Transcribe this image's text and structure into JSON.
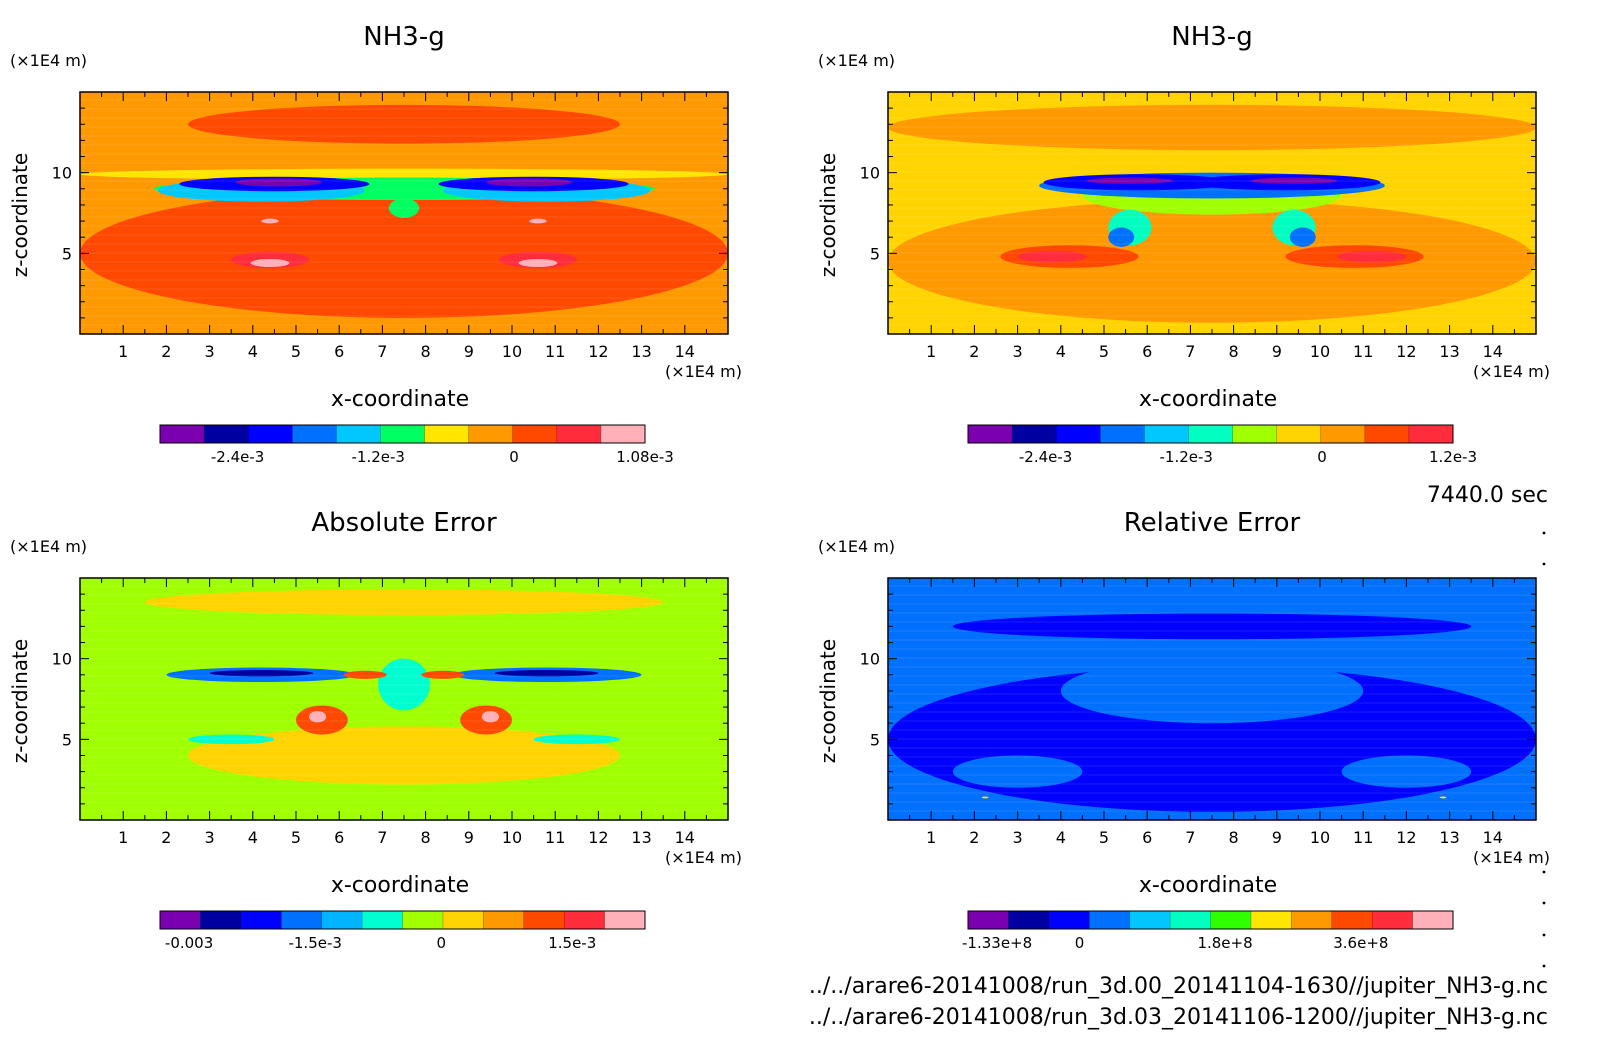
{
  "time_label": "7440.0 sec",
  "files": [
    "../../arare6-20141008/run_3d.00_20141104-1630//jupiter_NH3-g.nc",
    "../../arare6-20141008/run_3d.03_20141106-1200//jupiter_NH3-g.nc"
  ],
  "chart_data": [
    {
      "type": "heatmap",
      "title": "NH3-g",
      "xlabel": "x-coordinate",
      "ylabel": "z-coordinate",
      "x_unit": "(×1E4 m)",
      "y_unit": "(×1E4 m)",
      "xlim": [
        0,
        15
      ],
      "ylim": [
        0,
        15
      ],
      "x_ticks": [
        1,
        2,
        3,
        4,
        5,
        6,
        7,
        8,
        9,
        10,
        11,
        12,
        13,
        14
      ],
      "y_ticks": [
        5,
        10
      ],
      "colorbar": {
        "colors": [
          "#7a00b0",
          "#0000a0",
          "#0000ff",
          "#0070ff",
          "#00c8ff",
          "#00ff60",
          "#ffe600",
          "#ff9900",
          "#ff4800",
          "#ff2c3c",
          "#ffb0b8"
        ],
        "labels": [
          "-2.4e-3",
          "-1.2e-3",
          "0",
          "1.08e-3"
        ]
      },
      "field": {
        "background": "#ff9900",
        "regions": [
          {
            "color": "#ff4800",
            "x": [
              0,
              15
            ],
            "y": [
              11.8,
              14.2
            ],
            "cx": 7.5,
            "cy": 13,
            "rx": 5,
            "ry": 1.2
          },
          {
            "color": "#ff4800",
            "cx": 7.5,
            "cy": 5,
            "rx": 7.5,
            "ry": 4
          },
          {
            "color": "#ffe600",
            "cx": 7.5,
            "cy": 9.9,
            "rx": 7.5,
            "ry": 0.35
          },
          {
            "color": "#00ff60",
            "cx": 7.5,
            "cy": 9,
            "rx": 5.8,
            "ry": 0.7
          },
          {
            "color": "#00c8ff",
            "cx": 4.2,
            "cy": 8.9,
            "rx": 2.4,
            "ry": 0.7
          },
          {
            "color": "#00c8ff",
            "cx": 10.8,
            "cy": 8.9,
            "rx": 2.4,
            "ry": 0.7
          },
          {
            "color": "#0000ff",
            "cx": 4.5,
            "cy": 9.3,
            "rx": 2.2,
            "ry": 0.45
          },
          {
            "color": "#0000ff",
            "cx": 10.5,
            "cy": 9.3,
            "rx": 2.2,
            "ry": 0.45
          },
          {
            "color": "#7a00b0",
            "cx": 4.6,
            "cy": 9.4,
            "rx": 1.0,
            "ry": 0.25
          },
          {
            "color": "#7a00b0",
            "cx": 10.4,
            "cy": 9.4,
            "rx": 1.0,
            "ry": 0.25
          },
          {
            "color": "#00ff60",
            "cx": 7.5,
            "cy": 7.8,
            "rx": 0.35,
            "ry": 0.6
          },
          {
            "color": "#ff2c3c",
            "cx": 4.4,
            "cy": 4.6,
            "rx": 0.9,
            "ry": 0.5
          },
          {
            "color": "#ff2c3c",
            "cx": 10.6,
            "cy": 4.6,
            "rx": 0.9,
            "ry": 0.5
          },
          {
            "color": "#ffb0b8",
            "cx": 4.4,
            "cy": 4.4,
            "rx": 0.45,
            "ry": 0.25
          },
          {
            "color": "#ffb0b8",
            "cx": 10.6,
            "cy": 4.4,
            "rx": 0.45,
            "ry": 0.25
          },
          {
            "color": "#ffb0b8",
            "cx": 4.4,
            "cy": 7.0,
            "rx": 0.2,
            "ry": 0.15
          },
          {
            "color": "#ffb0b8",
            "cx": 10.6,
            "cy": 7.0,
            "rx": 0.2,
            "ry": 0.15
          }
        ]
      }
    },
    {
      "type": "heatmap",
      "title": "NH3-g",
      "xlabel": "x-coordinate",
      "ylabel": "z-coordinate",
      "x_unit": "(×1E4 m)",
      "y_unit": "(×1E4 m)",
      "xlim": [
        0,
        15
      ],
      "ylim": [
        0,
        15
      ],
      "x_ticks": [
        1,
        2,
        3,
        4,
        5,
        6,
        7,
        8,
        9,
        10,
        11,
        12,
        13,
        14
      ],
      "y_ticks": [
        5,
        10
      ],
      "colorbar": {
        "colors": [
          "#7a00b0",
          "#0000a0",
          "#0000ff",
          "#0070ff",
          "#00c8ff",
          "#00ffc0",
          "#a0ff00",
          "#ffd400",
          "#ff9900",
          "#ff4800",
          "#ff2c3c"
        ],
        "labels": [
          "-2.4e-3",
          "-1.2e-3",
          "0",
          "1.2e-3"
        ]
      },
      "field": {
        "background": "#ffd400",
        "regions": [
          {
            "color": "#ff9900",
            "cx": 7.5,
            "cy": 12.8,
            "rx": 7.5,
            "ry": 1.4
          },
          {
            "color": "#ff9900",
            "cx": 7.5,
            "cy": 4.5,
            "rx": 7.5,
            "ry": 3.8
          },
          {
            "color": "#ff4800",
            "cx": 4.2,
            "cy": 4.8,
            "rx": 1.6,
            "ry": 0.7
          },
          {
            "color": "#ff4800",
            "cx": 10.8,
            "cy": 4.8,
            "rx": 1.6,
            "ry": 0.7
          },
          {
            "color": "#ff2c3c",
            "cx": 3.8,
            "cy": 4.8,
            "rx": 0.8,
            "ry": 0.35
          },
          {
            "color": "#ff2c3c",
            "cx": 11.2,
            "cy": 4.8,
            "rx": 0.8,
            "ry": 0.35
          },
          {
            "color": "#a0ff00",
            "cx": 7.5,
            "cy": 8.6,
            "rx": 3.0,
            "ry": 1.2
          },
          {
            "color": "#00ffc0",
            "cx": 5.6,
            "cy": 6.6,
            "rx": 0.5,
            "ry": 1.1
          },
          {
            "color": "#00ffc0",
            "cx": 9.4,
            "cy": 6.6,
            "rx": 0.5,
            "ry": 1.1
          },
          {
            "color": "#0070ff",
            "cx": 5.4,
            "cy": 6.0,
            "rx": 0.3,
            "ry": 0.6
          },
          {
            "color": "#0070ff",
            "cx": 9.6,
            "cy": 6.0,
            "rx": 0.3,
            "ry": 0.6
          },
          {
            "color": "#0070ff",
            "cx": 7.5,
            "cy": 9.2,
            "rx": 4.0,
            "ry": 0.8
          },
          {
            "color": "#0000ff",
            "cx": 5.8,
            "cy": 9.4,
            "rx": 2.2,
            "ry": 0.5
          },
          {
            "color": "#0000ff",
            "cx": 9.2,
            "cy": 9.4,
            "rx": 2.2,
            "ry": 0.5
          },
          {
            "color": "#7a00b0",
            "cx": 5.6,
            "cy": 9.5,
            "rx": 1.0,
            "ry": 0.2
          },
          {
            "color": "#7a00b0",
            "cx": 9.4,
            "cy": 9.5,
            "rx": 1.0,
            "ry": 0.2
          }
        ]
      }
    },
    {
      "type": "heatmap",
      "title": "Absolute Error",
      "xlabel": "x-coordinate",
      "ylabel": "z-coordinate",
      "x_unit": "(×1E4 m)",
      "y_unit": "(×1E4 m)",
      "xlim": [
        0,
        15
      ],
      "ylim": [
        0,
        15
      ],
      "x_ticks": [
        1,
        2,
        3,
        4,
        5,
        6,
        7,
        8,
        9,
        10,
        11,
        12,
        13,
        14
      ],
      "y_ticks": [
        5,
        10
      ],
      "colorbar": {
        "colors": [
          "#7a00b0",
          "#0000a0",
          "#0000ff",
          "#0070ff",
          "#00b4ff",
          "#00ffd0",
          "#a0ff00",
          "#ffd400",
          "#ff9900",
          "#ff4800",
          "#ff2c3c",
          "#ffb0b8"
        ],
        "labels": [
          "-0.003",
          "-1.5e-3",
          "0",
          "1.5e-3"
        ]
      },
      "field": {
        "background": "#a0ff00",
        "regions": [
          {
            "color": "#ffd400",
            "cx": 7.5,
            "cy": 13.5,
            "rx": 6.0,
            "ry": 0.8
          },
          {
            "color": "#ffd400",
            "cx": 7.5,
            "cy": 4.0,
            "rx": 5.0,
            "ry": 1.8
          },
          {
            "color": "#00ffd0",
            "cx": 7.5,
            "cy": 8.4,
            "rx": 0.6,
            "ry": 1.6
          },
          {
            "color": "#00ffd0",
            "cx": 3.5,
            "cy": 5.0,
            "rx": 1.0,
            "ry": 0.3
          },
          {
            "color": "#00ffd0",
            "cx": 11.5,
            "cy": 5.0,
            "rx": 1.0,
            "ry": 0.3
          },
          {
            "color": "#0070ff",
            "cx": 4.2,
            "cy": 9.0,
            "rx": 2.2,
            "ry": 0.45
          },
          {
            "color": "#0070ff",
            "cx": 10.8,
            "cy": 9.0,
            "rx": 2.2,
            "ry": 0.45
          },
          {
            "color": "#0000a0",
            "cx": 4.2,
            "cy": 9.1,
            "rx": 1.2,
            "ry": 0.2
          },
          {
            "color": "#0000a0",
            "cx": 10.8,
            "cy": 9.1,
            "rx": 1.2,
            "ry": 0.2
          },
          {
            "color": "#ff4800",
            "cx": 5.6,
            "cy": 6.2,
            "rx": 0.6,
            "ry": 0.9
          },
          {
            "color": "#ff4800",
            "cx": 9.4,
            "cy": 6.2,
            "rx": 0.6,
            "ry": 0.9
          },
          {
            "color": "#ffb0b8",
            "cx": 5.5,
            "cy": 6.4,
            "rx": 0.2,
            "ry": 0.35
          },
          {
            "color": "#ffb0b8",
            "cx": 9.5,
            "cy": 6.4,
            "rx": 0.2,
            "ry": 0.35
          },
          {
            "color": "#ff4800",
            "cx": 6.6,
            "cy": 9.0,
            "rx": 0.5,
            "ry": 0.25
          },
          {
            "color": "#ff4800",
            "cx": 8.4,
            "cy": 9.0,
            "rx": 0.5,
            "ry": 0.25
          }
        ]
      }
    },
    {
      "type": "heatmap",
      "title": "Relative Error",
      "xlabel": "x-coordinate",
      "ylabel": "z-coordinate",
      "x_unit": "(×1E4 m)",
      "y_unit": "(×1E4 m)",
      "xlim": [
        0,
        15
      ],
      "ylim": [
        0,
        15
      ],
      "x_ticks": [
        1,
        2,
        3,
        4,
        5,
        6,
        7,
        8,
        9,
        10,
        11,
        12,
        13,
        14
      ],
      "y_ticks": [
        5,
        10
      ],
      "colorbar": {
        "colors": [
          "#7a00b0",
          "#0000a0",
          "#0000ff",
          "#0070ff",
          "#00c8ff",
          "#00ffc0",
          "#30ff00",
          "#ffe600",
          "#ff9900",
          "#ff4800",
          "#ff2c3c",
          "#ffb0b8"
        ],
        "labels": [
          "-1.33e+8",
          "0",
          "1.8e+8",
          "3.6e+8"
        ]
      },
      "field": {
        "background": "#0070ff",
        "regions": [
          {
            "color": "#0000ff",
            "cx": 7.5,
            "cy": 5.0,
            "rx": 7.5,
            "ry": 4.5
          },
          {
            "color": "#0070ff",
            "cx": 7.5,
            "cy": 8.0,
            "rx": 3.5,
            "ry": 2.0
          },
          {
            "color": "#0000ff",
            "cx": 7.5,
            "cy": 12.0,
            "rx": 6.0,
            "ry": 0.8
          },
          {
            "color": "#0070ff",
            "cx": 3.0,
            "cy": 3.0,
            "rx": 1.5,
            "ry": 1.0
          },
          {
            "color": "#0070ff",
            "cx": 12.0,
            "cy": 3.0,
            "rx": 1.5,
            "ry": 1.0
          },
          {
            "color": "#ffe600",
            "cx": 2.25,
            "cy": 1.4,
            "rx": 0.08,
            "ry": 0.06
          },
          {
            "color": "#ffe600",
            "cx": 12.85,
            "cy": 1.4,
            "rx": 0.08,
            "ry": 0.06
          }
        ]
      }
    }
  ]
}
